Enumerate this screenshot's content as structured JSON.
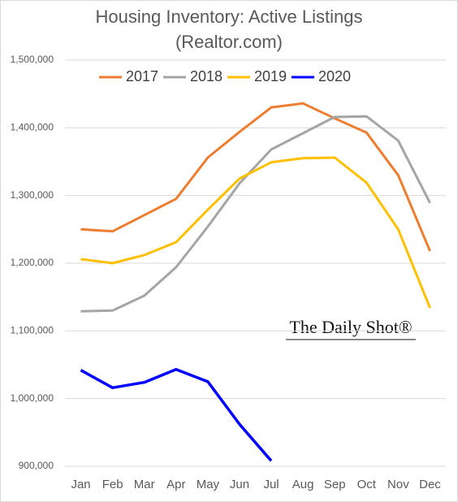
{
  "chart_data": {
    "type": "line",
    "title": "Housing Inventory: Active Listings",
    "subtitle": "(Realtor.com)",
    "annotation": "The Daily Shot®",
    "categories": [
      "Jan",
      "Feb",
      "Mar",
      "Apr",
      "May",
      "Jun",
      "Jul",
      "Aug",
      "Sep",
      "Oct",
      "Nov",
      "Dec"
    ],
    "series": [
      {
        "name": "2017",
        "color": "#ed7d31",
        "values": [
          1250000,
          1247000,
          1271000,
          1295000,
          1356000,
          1394000,
          1430000,
          1436000,
          1414000,
          1393000,
          1330000,
          1218000
        ]
      },
      {
        "name": "2018",
        "color": "#a5a5a5",
        "values": [
          1129000,
          1130000,
          1152000,
          1194000,
          1254000,
          1318000,
          1368000,
          1392000,
          1416000,
          1417000,
          1381000,
          1289000
        ]
      },
      {
        "name": "2019",
        "color": "#ffc000",
        "values": [
          1206000,
          1200000,
          1212000,
          1231000,
          1279000,
          1325000,
          1349000,
          1355000,
          1356000,
          1319000,
          1250000,
          1134000
        ]
      },
      {
        "name": "2020",
        "color": "#0000ff",
        "values": [
          1042000,
          1016000,
          1024000,
          1043000,
          1025000,
          962000,
          908000,
          null,
          null,
          null,
          null,
          null
        ]
      }
    ],
    "ylim": [
      900000,
      1500000
    ],
    "yticks": [
      {
        "value": 900000,
        "label": "900,000"
      },
      {
        "value": 1000000,
        "label": "1,000,000"
      },
      {
        "value": 1100000,
        "label": "1,100,000"
      },
      {
        "value": 1200000,
        "label": "1,200,000"
      },
      {
        "value": 1300000,
        "label": "1,300,000"
      },
      {
        "value": 1400000,
        "label": "1,400,000"
      },
      {
        "value": 1500000,
        "label": "1,500,000"
      }
    ],
    "grid": true,
    "legend": "top"
  }
}
